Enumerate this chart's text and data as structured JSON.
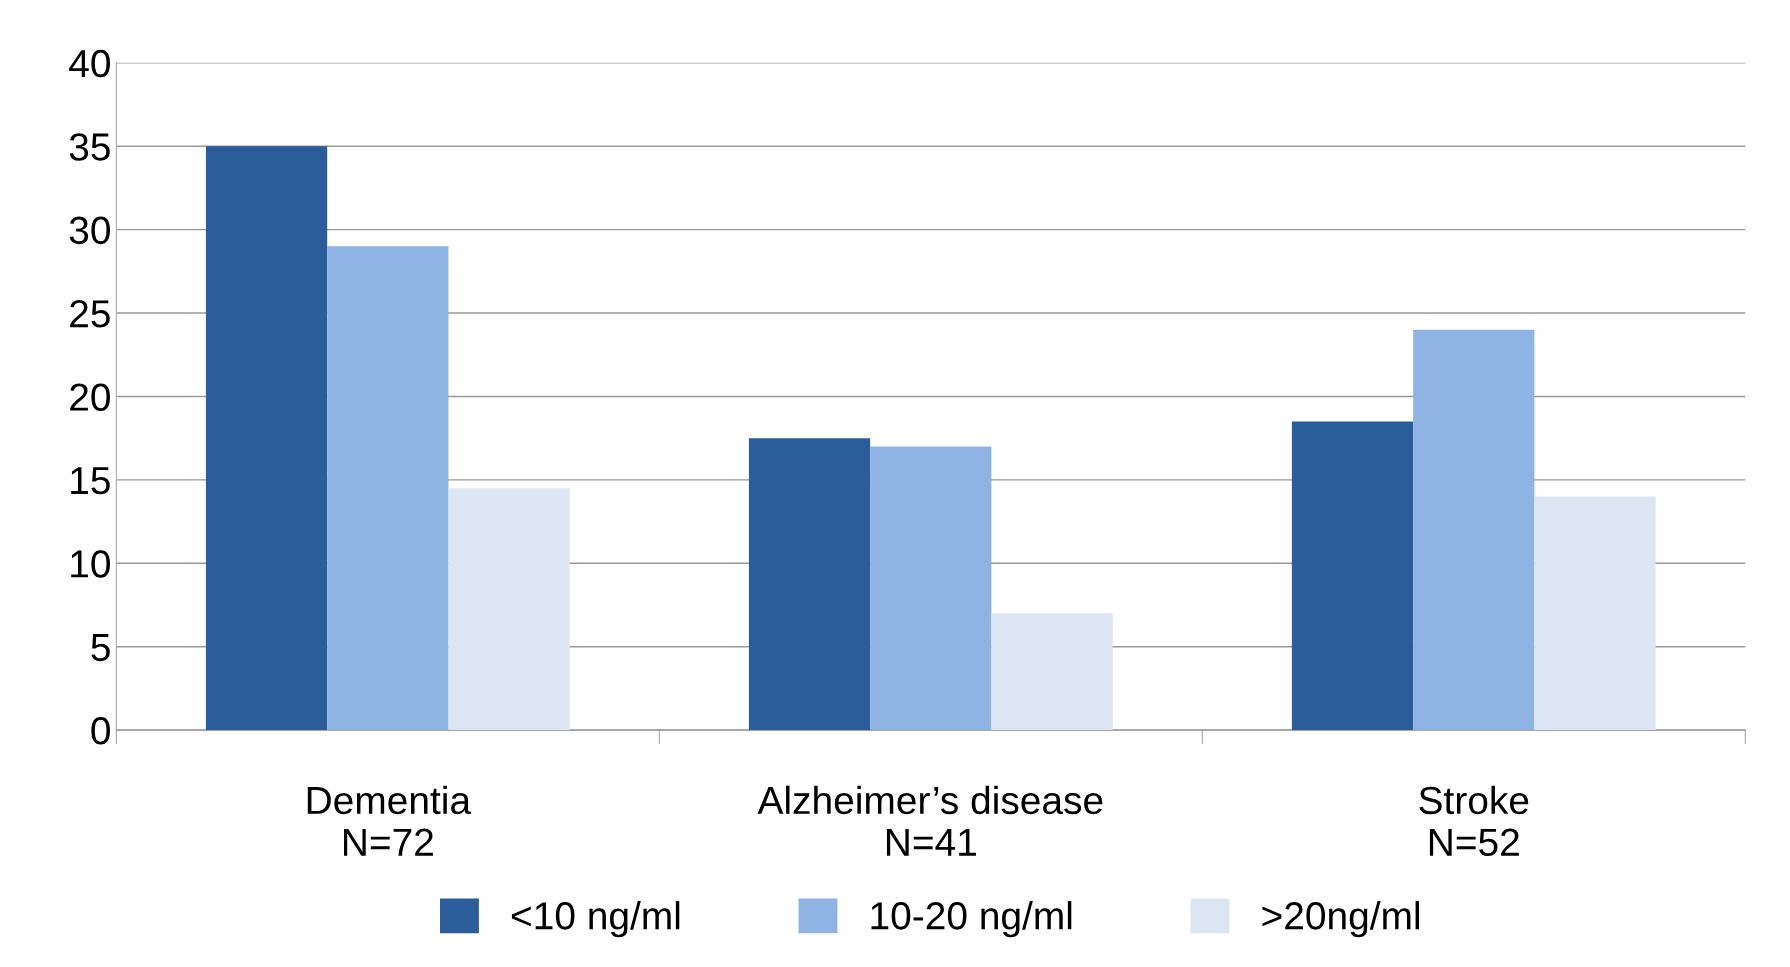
{
  "chart_data": {
    "type": "bar",
    "categories": [
      "Dementia\nN=72",
      "Alzheimer’s disease\nN=41",
      "Stroke\nN=52"
    ],
    "series": [
      {
        "name": "<10 ng/ml",
        "color": "#2b5d9b",
        "values": [
          35,
          17.5,
          18.5
        ]
      },
      {
        "name": "10-20 ng/ml",
        "color": "#8fb4e3",
        "values": [
          29,
          17,
          24
        ]
      },
      {
        "name": ">20ng/ml",
        "color": "#dce6f2",
        "values": [
          14.5,
          7,
          14
        ]
      }
    ],
    "ylim": [
      0,
      40
    ],
    "yticks": [
      0,
      5,
      10,
      15,
      20,
      25,
      30,
      35,
      40
    ],
    "grid": "y",
    "legend": "bottom"
  }
}
